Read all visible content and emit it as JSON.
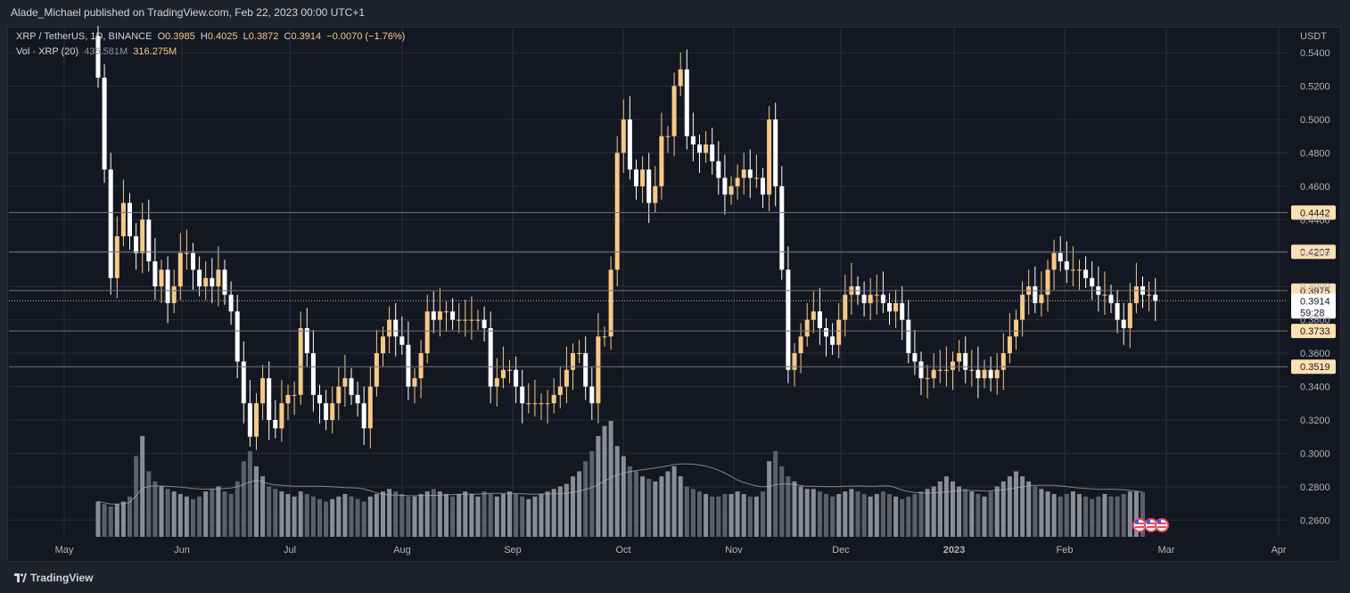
{
  "header": {
    "publisher": "Alade_Michael published on TradingView.com, Feb 22, 2023 00:00 UTC+1"
  },
  "legend": {
    "symbol": "XRP / TetherUS, 1D, BINANCE",
    "o_label": "O",
    "o": "0.3985",
    "h_label": "H",
    "h": "0.4025",
    "l_label": "L",
    "l": "0.3872",
    "c_label": "C",
    "c": "0.3914",
    "change": "−0.0070 (−1.76%)",
    "vol_label": "Vol · XRP (20)",
    "vol_ma": "436.581M",
    "vol": "316.275M"
  },
  "footer": {
    "brand": "TradingView"
  },
  "colors": {
    "up": "#f7c987",
    "down": "#ffffff",
    "background": "#131722",
    "grid": "#2a2e39",
    "level_line": "#6f7380",
    "label_bg": "#ffe0b2"
  },
  "chart_data": {
    "type": "candlestick",
    "currency": "USDT",
    "ylim": [
      0.25,
      0.555
    ],
    "y_ticks": [
      "0.2600",
      "0.2800",
      "0.3000",
      "0.3200",
      "0.3400",
      "0.3600",
      "0.3800",
      "0.4000",
      "0.4200",
      "0.4400",
      "0.4600",
      "0.4800",
      "0.5000",
      "0.5200",
      "0.5400"
    ],
    "x_ticks": [
      "May",
      "Jun",
      "Jul",
      "Aug",
      "Sep",
      "Oct",
      "Nov",
      "Dec",
      "2023",
      "Feb",
      "Mar",
      "Apr"
    ],
    "levels": [
      "0.4442",
      "0.4207",
      "0.3975",
      "0.3733",
      "0.3519"
    ],
    "last_price": "0.3914",
    "countdown": "59:28",
    "closes": [
      0.525,
      0.47,
      0.405,
      0.43,
      0.45,
      0.43,
      0.42,
      0.44,
      0.415,
      0.4,
      0.41,
      0.39,
      0.4,
      0.42,
      0.42,
      0.41,
      0.4,
      0.405,
      0.4,
      0.41,
      0.395,
      0.385,
      0.355,
      0.33,
      0.31,
      0.33,
      0.345,
      0.32,
      0.315,
      0.33,
      0.335,
      0.335,
      0.375,
      0.36,
      0.335,
      0.33,
      0.32,
      0.33,
      0.34,
      0.345,
      0.335,
      0.33,
      0.315,
      0.34,
      0.36,
      0.37,
      0.38,
      0.37,
      0.365,
      0.34,
      0.345,
      0.36,
      0.385,
      0.38,
      0.385,
      0.385,
      0.38,
      0.38,
      0.38,
      0.38,
      0.38,
      0.375,
      0.34,
      0.345,
      0.35,
      0.35,
      0.34,
      0.33,
      0.33,
      0.33,
      0.33,
      0.33,
      0.335,
      0.34,
      0.35,
      0.36,
      0.36,
      0.34,
      0.33,
      0.37,
      0.37,
      0.41,
      0.48,
      0.5,
      0.47,
      0.46,
      0.47,
      0.45,
      0.46,
      0.49,
      0.49,
      0.52,
      0.53,
      0.49,
      0.485,
      0.48,
      0.485,
      0.475,
      0.465,
      0.455,
      0.46,
      0.465,
      0.47,
      0.465,
      0.465,
      0.455,
      0.5,
      0.46,
      0.41,
      0.35,
      0.36,
      0.37,
      0.38,
      0.385,
      0.375,
      0.37,
      0.365,
      0.38,
      0.395,
      0.4,
      0.395,
      0.39,
      0.395,
      0.395,
      0.39,
      0.385,
      0.39,
      0.38,
      0.36,
      0.355,
      0.345,
      0.345,
      0.35,
      0.35,
      0.35,
      0.355,
      0.36,
      0.35,
      0.35,
      0.345,
      0.35,
      0.345,
      0.35,
      0.36,
      0.37,
      0.38,
      0.395,
      0.4,
      0.39,
      0.395,
      0.41,
      0.42,
      0.415,
      0.41,
      0.41,
      0.41,
      0.405,
      0.4,
      0.395,
      0.395,
      0.39,
      0.38,
      0.375,
      0.39,
      0.4,
      0.395,
      0.395,
      0.3914
    ],
    "volumes": [
      70,
      65,
      60,
      65,
      70,
      80,
      160,
      200,
      130,
      110,
      100,
      95,
      90,
      85,
      80,
      75,
      80,
      90,
      95,
      100,
      90,
      85,
      110,
      150,
      170,
      140,
      120,
      100,
      95,
      90,
      85,
      80,
      90,
      85,
      80,
      75,
      70,
      75,
      80,
      85,
      80,
      75,
      70,
      80,
      85,
      90,
      95,
      90,
      85,
      80,
      80,
      85,
      90,
      95,
      90,
      85,
      80,
      85,
      90,
      85,
      80,
      90,
      85,
      80,
      85,
      90,
      85,
      80,
      75,
      80,
      85,
      90,
      95,
      100,
      105,
      120,
      130,
      150,
      170,
      200,
      220,
      230,
      180,
      160,
      140,
      130,
      120,
      115,
      110,
      120,
      130,
      140,
      120,
      100,
      95,
      90,
      85,
      80,
      80,
      85,
      85,
      90,
      85,
      80,
      80,
      90,
      150,
      170,
      140,
      120,
      110,
      100,
      95,
      95,
      90,
      85,
      80,
      85,
      90,
      95,
      90,
      85,
      80,
      85,
      90,
      85,
      80,
      75,
      80,
      85,
      90,
      95,
      100,
      110,
      120,
      110,
      100,
      95,
      90,
      85,
      80,
      90,
      100,
      110,
      120,
      130,
      120,
      110,
      100,
      95,
      90,
      85,
      80,
      85,
      90,
      85,
      80,
      75,
      80,
      85,
      80,
      80,
      85,
      90,
      90,
      88
    ]
  }
}
